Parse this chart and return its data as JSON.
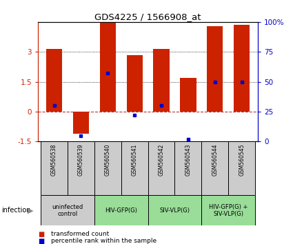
{
  "title": "GDS4225 / 1566908_at",
  "samples": [
    "GSM560538",
    "GSM560539",
    "GSM560540",
    "GSM560541",
    "GSM560542",
    "GSM560543",
    "GSM560544",
    "GSM560545"
  ],
  "transformed_counts": [
    3.15,
    -1.1,
    4.45,
    2.85,
    3.15,
    1.7,
    4.3,
    4.35
  ],
  "percentile_ranks": [
    30,
    5,
    57,
    22,
    30,
    2,
    50,
    50
  ],
  "bar_color": "#cc2200",
  "dot_color": "#0000cc",
  "ylim_left": [
    -1.5,
    4.5
  ],
  "yticks_left": [
    -1.5,
    0,
    1.5,
    3
  ],
  "yticks_right_vals": [
    0,
    25,
    50,
    75,
    100
  ],
  "yticks_right_labels": [
    "0",
    "25",
    "50",
    "75",
    "100%"
  ],
  "dotted_hlines": [
    1.5,
    3.0
  ],
  "dashed_hline_y": 0,
  "dashed_hline_color": "#bb3333",
  "group_labels": [
    "uninfected\ncontrol",
    "HIV-GFP(G)",
    "SIV-VLP(G)",
    "HIV-GFP(G) +\nSIV-VLP(G)"
  ],
  "group_ranges": [
    [
      0,
      2
    ],
    [
      2,
      4
    ],
    [
      4,
      6
    ],
    [
      6,
      8
    ]
  ],
  "group_colors": [
    "#cccccc",
    "#99dd99",
    "#99dd99",
    "#99dd99"
  ],
  "sample_box_color": "#cccccc",
  "infection_label": "infection",
  "legend_red_label": "transformed count",
  "legend_blue_label": "percentile rank within the sample",
  "background_color": "#ffffff",
  "left_axis_color": "#cc2200",
  "right_axis_color": "#0000cc"
}
